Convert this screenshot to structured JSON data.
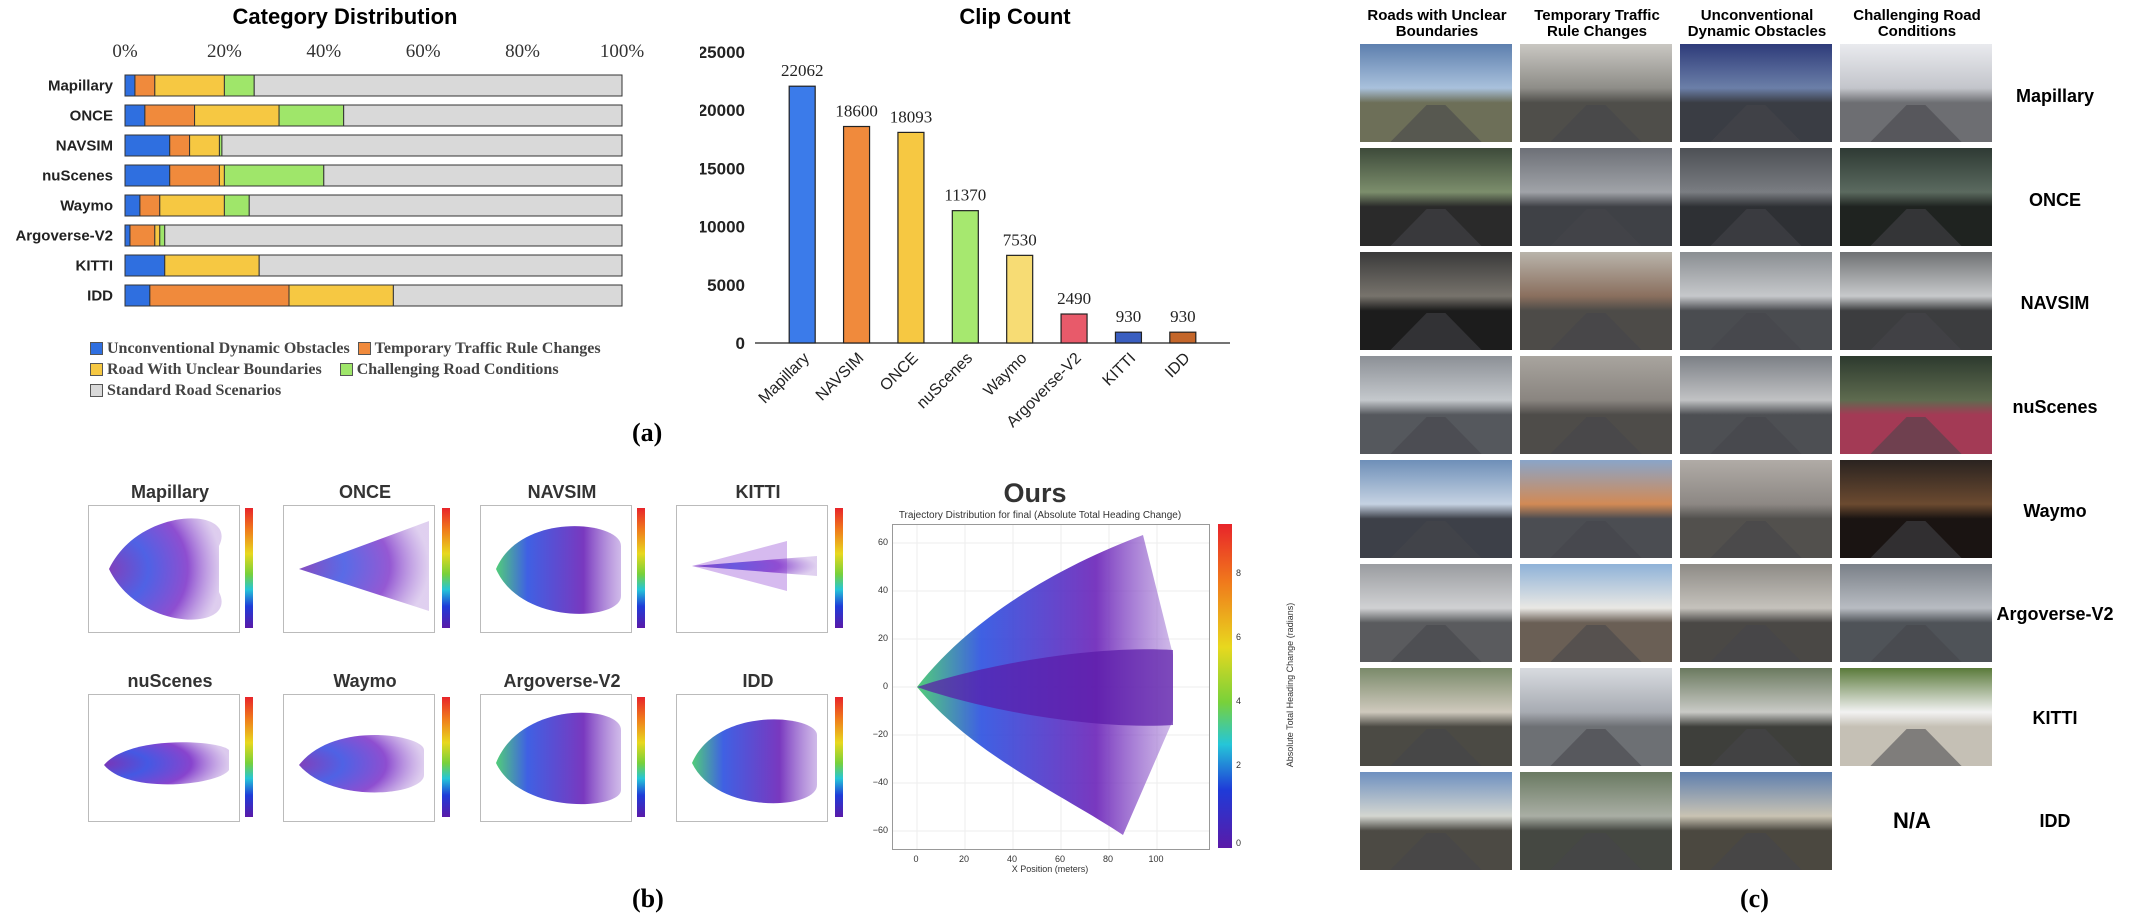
{
  "panel_a": {
    "letter": "(a)",
    "stacked": {
      "title": "Category Distribution",
      "tick_labels": [
        "0%",
        "20%",
        "40%",
        "60%",
        "80%",
        "100%"
      ],
      "legend": [
        {
          "label": "Unconventional Dynamic Obstacles",
          "color": "#2f6fe0"
        },
        {
          "label": "Temporary Traffic Rule Changes",
          "color": "#f08a3c"
        },
        {
          "label": "Road With Unclear Boundaries",
          "color": "#f6c842"
        },
        {
          "label": "Challenging Road Conditions",
          "color": "#9fe66a"
        },
        {
          "label": "Standard Road Scenarios",
          "color": "#d9d9d9"
        }
      ]
    },
    "bars": {
      "title": "Clip Count",
      "y_ticks": [
        "25000",
        "20000",
        "15000",
        "10000",
        "5000",
        "0"
      ]
    }
  },
  "chart_data": [
    {
      "type": "bar",
      "orientation": "horizontal-stacked",
      "title": "Category Distribution",
      "xlim": [
        0,
        100
      ],
      "categories": [
        "Mapillary",
        "ONCE",
        "NAVSIM",
        "nuScenes",
        "Waymo",
        "Argoverse-V2",
        "KITTI",
        "IDD"
      ],
      "series": [
        {
          "name": "Unconventional Dynamic Obstacles",
          "values": [
            2,
            4,
            9,
            9,
            3,
            1,
            8,
            5
          ],
          "color": "#2f6fe0"
        },
        {
          "name": "Temporary Traffic Rule Changes",
          "values": [
            4,
            10,
            4,
            10,
            4,
            5,
            0,
            28
          ],
          "color": "#f08a3c"
        },
        {
          "name": "Road With Unclear Boundaries",
          "values": [
            14,
            17,
            6,
            1,
            13,
            1,
            19,
            21
          ],
          "color": "#f6c842"
        },
        {
          "name": "Challenging Road Conditions",
          "values": [
            6,
            13,
            0.5,
            20,
            5,
            1,
            0,
            0
          ],
          "color": "#9fe66a"
        },
        {
          "name": "Standard Road Scenarios",
          "values": [
            74,
            56,
            80.5,
            60,
            75,
            92,
            73,
            46
          ],
          "color": "#d9d9d9"
        }
      ],
      "legend_position": "bottom"
    },
    {
      "type": "bar",
      "title": "Clip Count",
      "categories": [
        "Mapillary",
        "NAVSIM",
        "ONCE",
        "nuScenes",
        "Waymo",
        "Argoverse-V2",
        "KITTI",
        "IDD"
      ],
      "values": [
        22062,
        18600,
        18093,
        11370,
        7530,
        2490,
        930,
        930
      ],
      "value_labels": [
        "22062",
        "18600",
        "18093",
        "11370",
        "7530",
        "2490",
        "930",
        "930"
      ],
      "colors": [
        "#3b7bea",
        "#f08a3c",
        "#f6c842",
        "#a6e86f",
        "#f7dc74",
        "#e85a6a",
        "#3a5ec0",
        "#c4662a"
      ],
      "ylim": [
        0,
        25000
      ],
      "grid": false
    }
  ],
  "panel_b": {
    "letter": "(b)",
    "small_titles": [
      "Mapillary",
      "ONCE",
      "NAVSIM",
      "KITTI",
      "nuScenes",
      "Waymo",
      "Argoverse-V2",
      "IDD"
    ],
    "big": {
      "title": "Ours",
      "subtitle": "Trajectory Distribution for final (Absolute Total Heading Change)",
      "xlabel": "X Position (meters)",
      "colorbar_label": "Absolute Total Heading Change (radians)",
      "x_ticks": [
        "0",
        "20",
        "40",
        "60",
        "80",
        "100"
      ],
      "y_ticks": [
        "60",
        "40",
        "20",
        "0",
        "−20",
        "−40",
        "−60"
      ],
      "cbar_ticks": [
        "8",
        "6",
        "4",
        "2",
        "0"
      ]
    }
  },
  "panel_c": {
    "letter": "(c)",
    "columns": [
      "Roads with Unclear Boundaries",
      "Temporary Traffic Rule Changes",
      "Unconventional Dynamic Obstacles",
      "Challenging Road Conditions"
    ],
    "rows": [
      "Mapillary",
      "ONCE",
      "NAVSIM",
      "nuScenes",
      "Waymo",
      "Argoverse-V2",
      "KITTI",
      "IDD"
    ],
    "na_label": "N/A"
  }
}
